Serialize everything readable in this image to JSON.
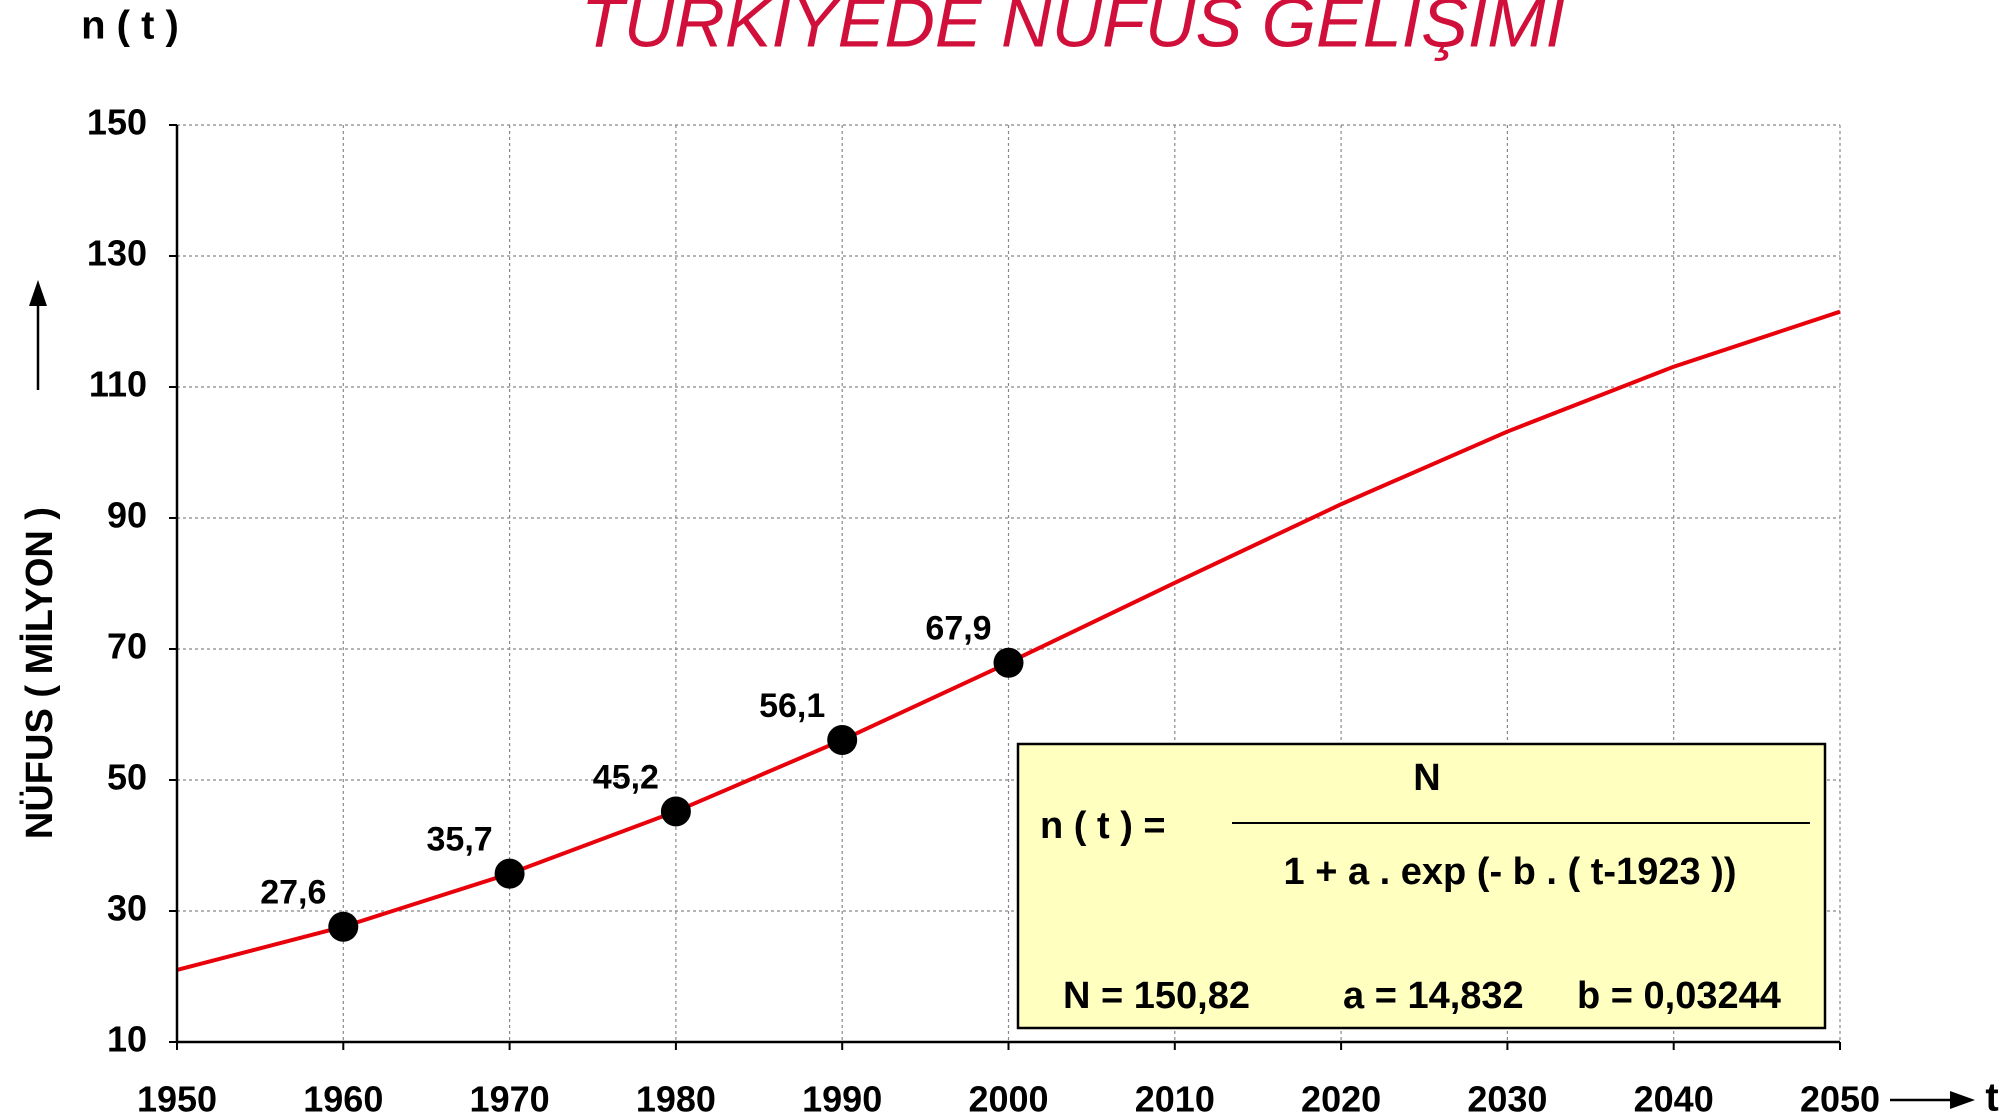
{
  "chart_data": {
    "type": "line",
    "title": "TÜRKİYEDE   NÜFUS   GELİŞİMİ",
    "title_color": "#d0103a",
    "y_label": "NÜFUS ( MİLYON )",
    "y_top_label": "n ( t )",
    "x_label": "t",
    "x": [
      1950,
      1960,
      1970,
      1980,
      1990,
      2000,
      2010,
      2020,
      2030,
      2040,
      2050
    ],
    "series": [
      {
        "color": "#e8000b",
        "values": [
          21.0,
          27.6,
          35.7,
          45.2,
          56.1,
          67.9,
          80.1,
          92.1,
          103.2,
          113.1,
          121.5
        ]
      },
      {
        "color": "#000000",
        "markers_only": true,
        "values": [
          null,
          27.6,
          35.7,
          45.2,
          56.1,
          67.9,
          null,
          null,
          null,
          null,
          null
        ],
        "value_labels": [
          null,
          "27,6",
          "35,7",
          "45,2",
          "56,1",
          "67,9",
          null,
          null,
          null,
          null,
          null
        ]
      }
    ],
    "xlim": [
      1950,
      2050
    ],
    "xticks": [
      1950,
      1960,
      1970,
      1980,
      1990,
      2000,
      2010,
      2020,
      2030,
      2040,
      2050
    ],
    "ylim": [
      10,
      150
    ],
    "yticks": [
      10,
      30,
      50,
      70,
      90,
      110,
      130,
      150
    ],
    "grid": true,
    "annotation": {
      "lhs": "n ( t )  =",
      "numerator": "N",
      "denominator": "1 + a . exp (- b . ( t-1923 ))",
      "params": [
        "N = 150,82",
        "a = 14,832",
        "b = 0,03244"
      ],
      "background": "#ffffc0"
    }
  }
}
